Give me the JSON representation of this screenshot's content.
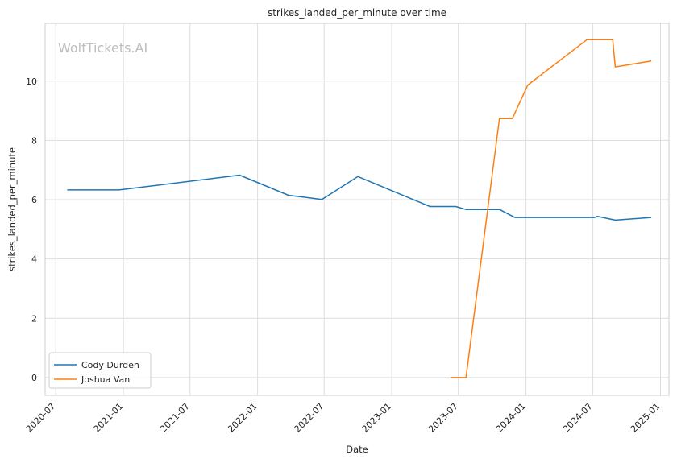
{
  "watermark": "WolfTickets.AI",
  "chart_data": {
    "type": "line",
    "title": "strikes_landed_per_minute over time",
    "xlabel": "Date",
    "ylabel": "strikes_landed_per_minute",
    "x_ticks": [
      "2020-07",
      "2021-01",
      "2021-07",
      "2022-01",
      "2022-07",
      "2023-01",
      "2023-07",
      "2024-01",
      "2024-07",
      "2025-01"
    ],
    "y_ticks": [
      0,
      2,
      4,
      6,
      8,
      10
    ],
    "xlim": [
      "2020-06-02",
      "2025-01-24"
    ],
    "ylim": [
      -0.6,
      11.95
    ],
    "grid": true,
    "legend_position": "lower-left",
    "series": [
      {
        "name": "Cody Durden",
        "color": "#1f77b4",
        "points": [
          {
            "x": "2020-08-01",
            "y": 6.33
          },
          {
            "x": "2020-12-20",
            "y": 6.33
          },
          {
            "x": "2021-11-13",
            "y": 6.83
          },
          {
            "x": "2022-03-26",
            "y": 6.15
          },
          {
            "x": "2022-06-25",
            "y": 6.01
          },
          {
            "x": "2022-10-01",
            "y": 6.78
          },
          {
            "x": "2023-04-15",
            "y": 5.77
          },
          {
            "x": "2023-06-24",
            "y": 5.77
          },
          {
            "x": "2023-07-22",
            "y": 5.67
          },
          {
            "x": "2023-10-21",
            "y": 5.67
          },
          {
            "x": "2023-12-02",
            "y": 5.4
          },
          {
            "x": "2024-07-06",
            "y": 5.4
          },
          {
            "x": "2024-07-13",
            "y": 5.44
          },
          {
            "x": "2024-08-31",
            "y": 5.31
          },
          {
            "x": "2024-12-07",
            "y": 5.4
          }
        ]
      },
      {
        "name": "Joshua Van",
        "color": "#ff7f0e",
        "points": [
          {
            "x": "2023-06-10",
            "y": 0.0
          },
          {
            "x": "2023-07-22",
            "y": 0.0
          },
          {
            "x": "2023-10-21",
            "y": 8.74
          },
          {
            "x": "2023-11-25",
            "y": 8.74
          },
          {
            "x": "2024-01-06",
            "y": 9.87
          },
          {
            "x": "2024-06-15",
            "y": 11.4
          },
          {
            "x": "2024-08-24",
            "y": 11.4
          },
          {
            "x": "2024-08-31",
            "y": 10.48
          },
          {
            "x": "2024-12-07",
            "y": 10.68
          }
        ]
      }
    ]
  }
}
